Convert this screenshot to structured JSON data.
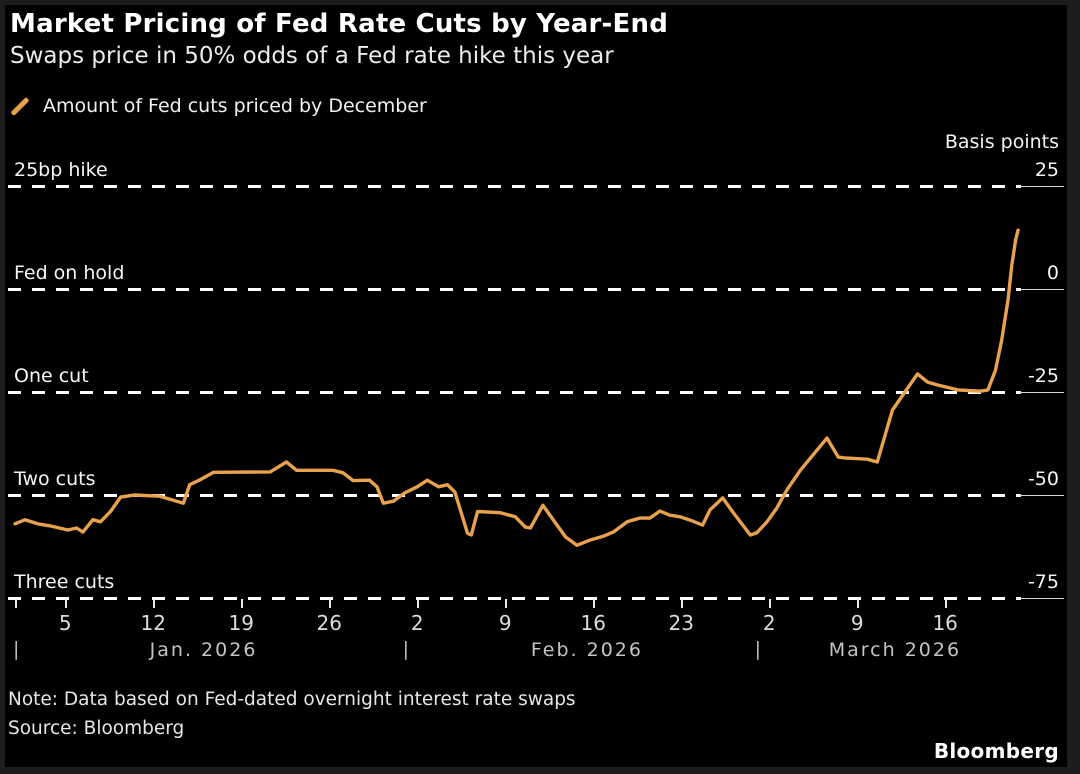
{
  "header": {
    "title": "Market Pricing of Fed Rate Cuts by Year-End",
    "subtitle": "Swaps price in 50% odds of a Fed rate hike this year"
  },
  "legend": {
    "label": "Amount of Fed cuts priced by December"
  },
  "y_axis_unit": "Basis points",
  "footer": {
    "note": "Note: Data based on Fed-dated overnight interest rate swaps",
    "source": "Source: Bloomberg",
    "brand": "Bloomberg"
  },
  "colors": {
    "accent": "#E8A24D",
    "grid": "#FFFFFF",
    "background": "#000000"
  },
  "chart_data": {
    "type": "line",
    "title": "Market Pricing of Fed Rate Cuts by Year-End",
    "ylabel": "Basis points",
    "ylim": [
      -75,
      25
    ],
    "grid": "dashed horizontal lines at each 25bp level",
    "legend_position": "top-left",
    "y_gridlines": [
      {
        "value": 25,
        "left_label": "25bp hike",
        "tick": "25"
      },
      {
        "value": 0,
        "left_label": "Fed on hold",
        "tick": "0"
      },
      {
        "value": -25,
        "left_label": "One cut",
        "tick": "-25"
      },
      {
        "value": -50,
        "left_label": "Two cuts",
        "tick": "-50"
      },
      {
        "value": -75,
        "left_label": "Three cuts",
        "tick": "-75"
      }
    ],
    "x_ticks": [
      {
        "label": "5",
        "day": 4
      },
      {
        "label": "12",
        "day": 11
      },
      {
        "label": "19",
        "day": 18
      },
      {
        "label": "26",
        "day": 25
      },
      {
        "label": "2",
        "day": 32
      },
      {
        "label": "9",
        "day": 39
      },
      {
        "label": "16",
        "day": 46
      },
      {
        "label": "23",
        "day": 53
      },
      {
        "label": "2",
        "day": 60
      },
      {
        "label": "9",
        "day": 67
      },
      {
        "label": "16",
        "day": 74
      }
    ],
    "months": [
      {
        "label": "Jan. 2026",
        "separator_day": 0,
        "center_day": 15
      },
      {
        "label": "Feb. 2026",
        "separator_day": 31,
        "center_day": 45.5
      },
      {
        "label": "March 2026",
        "separator_day": 59,
        "center_day": 70
      }
    ],
    "series": [
      {
        "name": "Amount of Fed cuts priced by December",
        "unit": "basis points",
        "points_day_bp": [
          [
            0,
            -57
          ],
          [
            0.8,
            -56
          ],
          [
            1.8,
            -57
          ],
          [
            2.8,
            -57.5
          ],
          [
            4.2,
            -58.5
          ],
          [
            4.9,
            -58
          ],
          [
            5.4,
            -59
          ],
          [
            6.2,
            -56
          ],
          [
            6.8,
            -56.5
          ],
          [
            7.6,
            -54
          ],
          [
            8.4,
            -50.5
          ],
          [
            9.5,
            -50
          ],
          [
            11.5,
            -50.3
          ],
          [
            12.3,
            -51
          ],
          [
            13.4,
            -52
          ],
          [
            13.9,
            -47.5
          ],
          [
            14.6,
            -46.5
          ],
          [
            15.8,
            -44.5
          ],
          [
            20.3,
            -44.4
          ],
          [
            21.6,
            -42
          ],
          [
            22.4,
            -44
          ],
          [
            25.3,
            -44
          ],
          [
            26.1,
            -44.6
          ],
          [
            26.9,
            -46.5
          ],
          [
            28.2,
            -46.4
          ],
          [
            28.8,
            -48
          ],
          [
            29.3,
            -52
          ],
          [
            30.1,
            -51.5
          ],
          [
            31,
            -49.5
          ],
          [
            32,
            -48
          ],
          [
            32.8,
            -46.4
          ],
          [
            33.7,
            -48
          ],
          [
            34.4,
            -47.5
          ],
          [
            35,
            -49.3
          ],
          [
            36,
            -59.3
          ],
          [
            36.3,
            -59.7
          ],
          [
            36.8,
            -54
          ],
          [
            38.6,
            -54.3
          ],
          [
            39.8,
            -55.3
          ],
          [
            40.6,
            -57.8
          ],
          [
            41,
            -58
          ],
          [
            42,
            -52.5
          ],
          [
            43,
            -56.8
          ],
          [
            43.8,
            -60.2
          ],
          [
            44.7,
            -62.2
          ],
          [
            45.7,
            -61
          ],
          [
            46.8,
            -60
          ],
          [
            47.6,
            -59
          ],
          [
            48.7,
            -56.5
          ],
          [
            49.7,
            -55.6
          ],
          [
            50.5,
            -55.6
          ],
          [
            51.3,
            -53.9
          ],
          [
            52.1,
            -54.9
          ],
          [
            52.9,
            -55.3
          ],
          [
            53.7,
            -56.1
          ],
          [
            54.7,
            -57.3
          ],
          [
            55.3,
            -53.6
          ],
          [
            56.3,
            -50.7
          ],
          [
            57.1,
            -54.1
          ],
          [
            57.9,
            -57.3
          ],
          [
            58.5,
            -59.7
          ],
          [
            59,
            -59.2
          ],
          [
            59.8,
            -56.6
          ],
          [
            60.6,
            -53.2
          ],
          [
            61.4,
            -48.8
          ],
          [
            62.5,
            -43.9
          ],
          [
            64.6,
            -36.2
          ],
          [
            65.5,
            -40.8
          ],
          [
            66,
            -41
          ],
          [
            67.8,
            -41.3
          ],
          [
            68.6,
            -42
          ],
          [
            69.8,
            -29.4
          ],
          [
            71.8,
            -20.6
          ],
          [
            72.6,
            -22.6
          ],
          [
            73.4,
            -23.3
          ],
          [
            75,
            -24.5
          ],
          [
            76.8,
            -24.8
          ],
          [
            77.4,
            -24.5
          ],
          [
            78,
            -19.7
          ],
          [
            78.5,
            -12.4
          ],
          [
            79,
            -2.7
          ],
          [
            79.3,
            5.8
          ],
          [
            79.6,
            11.9
          ],
          [
            79.8,
            14.3
          ]
        ]
      }
    ]
  }
}
